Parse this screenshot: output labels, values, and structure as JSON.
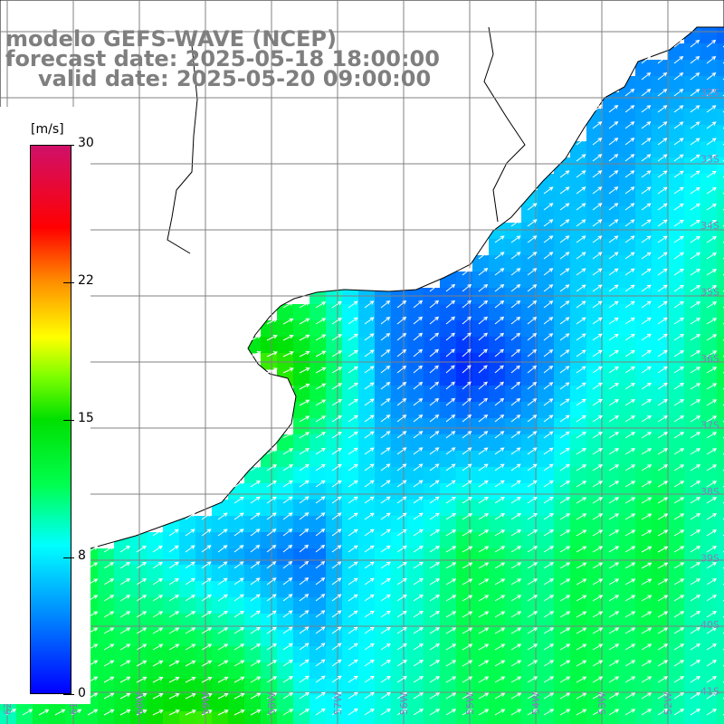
{
  "title": {
    "line1": "modelo GEFS-WAVE (NCEP)",
    "line2": "forecast date: 2025-05-18 18:00:00",
    "line3": "valid date: 2025-05-20 09:00:00"
  },
  "colorbar": {
    "unit": "[m/s]",
    "ticks": [
      "30",
      "22",
      "15",
      "8",
      "0"
    ],
    "colors": [
      "#0000ff",
      "#0090ff",
      "#00ffff",
      "#00ff50",
      "#00e000",
      "#80ff00",
      "#ffff00",
      "#ff9000",
      "#ff0000",
      "#d0106a"
    ]
  },
  "map": {
    "lat_labels": [
      "32S",
      "33S",
      "34S",
      "35S",
      "36S",
      "37S",
      "38S",
      "39S",
      "40S",
      "41S"
    ],
    "lon_labels": [
      "62W",
      "61W",
      "60W",
      "59W",
      "58W",
      "57W",
      "56W",
      "55W",
      "54W",
      "53W",
      "52W",
      "51W"
    ],
    "ocean_field": [
      [
        16,
        13,
        14,
        15,
        14,
        13,
        13,
        16,
        17,
        11,
        8,
        6,
        7,
        9,
        6,
        5,
        4,
        3,
        3,
        2
      ],
      [
        6,
        7,
        5,
        4,
        3,
        2,
        1,
        5,
        6,
        5,
        4,
        4,
        7,
        8,
        6,
        6,
        5,
        7,
        8,
        9
      ],
      [
        10,
        9,
        7,
        8,
        9,
        12,
        15,
        17,
        14,
        9,
        4,
        3,
        1,
        2,
        4,
        7,
        9,
        8,
        10,
        12
      ],
      [
        15,
        13,
        12,
        9,
        8,
        6,
        5,
        4,
        3,
        7,
        8,
        9,
        12,
        11,
        10,
        12,
        11,
        13,
        10,
        9
      ],
      [
        9,
        13,
        12,
        14,
        16,
        17,
        16,
        13,
        9,
        8,
        9,
        10,
        11,
        12,
        11,
        12,
        11,
        10,
        9,
        10
      ]
    ]
  }
}
